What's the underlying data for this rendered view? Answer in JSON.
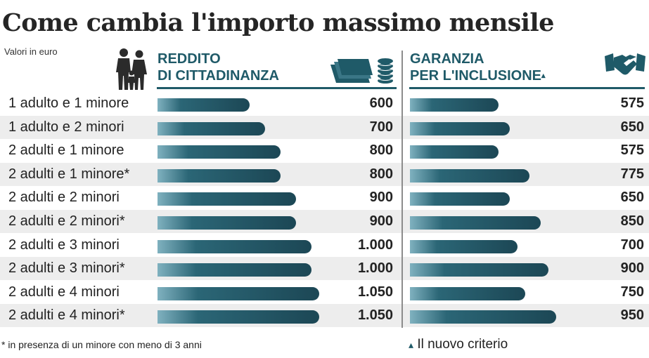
{
  "header": {
    "title": "Come cambia l'importo massimo mensile",
    "subtitle": "Valori in euro"
  },
  "icons": [
    "family-icon",
    "coins-stack-icon",
    "handshake-icon"
  ],
  "colors": {
    "accent": "#1f5a68",
    "bar_dark": "#1c4755",
    "bar_light": "#7fb1bf",
    "row_alt": "#ededed"
  },
  "chart_data": {
    "type": "bar",
    "title": "Come cambia l'importo massimo mensile",
    "subtitle": "Valori in euro",
    "categories": [
      "1 adulto e 1 minore",
      "1 adulto e 2 minori",
      "2 adulti e 1 minore",
      "2 adulti e 1 minore*",
      "2 adulti e 2 minori",
      "2 adulti e 2 minori*",
      "2 adulti e 3 minori",
      "2 adulti e 3 minori*",
      "2 adulti e 4 minori",
      "2 adulti e 4 minori*"
    ],
    "series": [
      {
        "name": "REDDITO DI CITTADINANZA",
        "name_lines": [
          "REDDITO",
          "DI CITTADINANZA"
        ],
        "values": [
          600,
          700,
          800,
          800,
          900,
          900,
          1000,
          1000,
          1050,
          1050
        ],
        "labels": [
          "600",
          "700",
          "800",
          "800",
          "900",
          "900",
          "1.000",
          "1.000",
          "1.050",
          "1.050"
        ]
      },
      {
        "name": "GARANZIA PER L'INCLUSIONE",
        "name_lines": [
          "GARANZIA",
          "PER L'INCLUSIONE"
        ],
        "name_marker": "▴",
        "values": [
          575,
          650,
          575,
          775,
          650,
          850,
          700,
          900,
          750,
          950
        ],
        "labels": [
          "575",
          "650",
          "575",
          "775",
          "650",
          "850",
          "700",
          "900",
          "750",
          "950"
        ]
      }
    ],
    "orientation": "horizontal",
    "xlim": [
      0,
      1050
    ]
  },
  "footnotes": {
    "asterisk": "* in presenza di un minore con meno di 3 anni",
    "marker": "▴",
    "new_criteria": "Il nuovo criterio"
  }
}
